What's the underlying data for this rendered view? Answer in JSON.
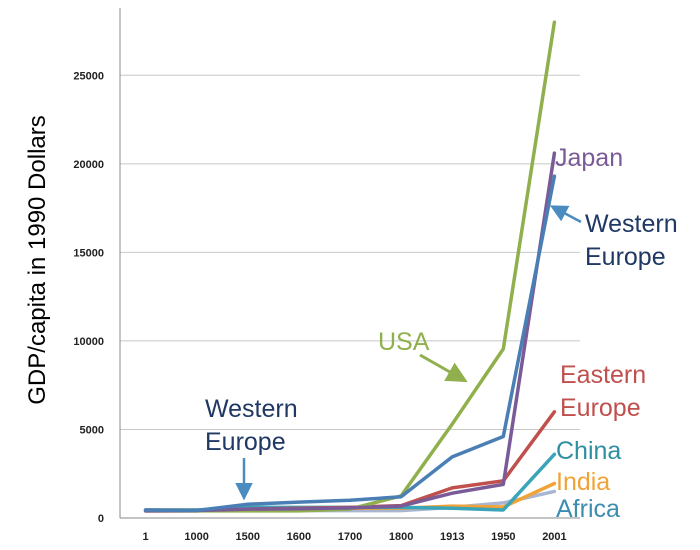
{
  "chart_data": {
    "type": "line",
    "title": "",
    "xlabel": "",
    "ylabel": "GDP/capita in 1990 Dollars",
    "categories": [
      "1",
      "1000",
      "1500",
      "1600",
      "1700",
      "1800",
      "1913",
      "1950",
      "2001"
    ],
    "yticks": [
      "0",
      "5000",
      "10000",
      "15000",
      "20000",
      "25000"
    ],
    "ylim": [
      0,
      28800
    ],
    "grid": true,
    "legend": "none",
    "series": [
      {
        "key": "africa",
        "color": "#a9b6d3",
        "values": [
          450,
          420,
          420,
          420,
          420,
          420,
          600,
          850,
          1500
        ]
      },
      {
        "key": "india",
        "color": "#f0a338",
        "values": [
          450,
          450,
          550,
          550,
          550,
          550,
          670,
          620,
          1950
        ]
      },
      {
        "key": "china",
        "color": "#3aa5b8",
        "values": [
          450,
          450,
          600,
          600,
          600,
          600,
          550,
          450,
          3600
        ]
      },
      {
        "key": "eastern_europe",
        "color": "#c0504d",
        "values": [
          400,
          400,
          500,
          550,
          600,
          700,
          1700,
          2100,
          6000
        ]
      },
      {
        "key": "usa",
        "color": "#8fb04c",
        "values": [
          400,
          400,
          400,
          400,
          500,
          1250,
          5300,
          9550,
          28000
        ]
      },
      {
        "key": "japan",
        "color": "#7a5b97",
        "values": [
          400,
          425,
          500,
          520,
          570,
          670,
          1400,
          1900,
          20600
        ]
      },
      {
        "key": "western_europe",
        "color": "#4a7fb5",
        "values": [
          450,
          425,
          780,
          900,
          1000,
          1200,
          3450,
          4600,
          19300
        ]
      }
    ],
    "annotations": [
      {
        "key": "japan",
        "lines": [
          "Japan"
        ],
        "color": "#7a5b97"
      },
      {
        "key": "we_right",
        "lines": [
          "Western",
          "Europe"
        ],
        "color": "#1f3864"
      },
      {
        "key": "usa",
        "lines": [
          "USA"
        ],
        "color": "#8fb04c"
      },
      {
        "key": "eastern_europe",
        "lines": [
          "Eastern",
          "Europe"
        ],
        "color": "#c0504d"
      },
      {
        "key": "we_left",
        "lines": [
          "Western",
          "Europe"
        ],
        "color": "#1f3864"
      },
      {
        "key": "china",
        "lines": [
          "China"
        ],
        "color": "#2e8fa3"
      },
      {
        "key": "india",
        "lines": [
          "India"
        ],
        "color": "#f0a338"
      },
      {
        "key": "africa",
        "lines": [
          "Africa"
        ],
        "color": "#3d8db0"
      }
    ]
  }
}
